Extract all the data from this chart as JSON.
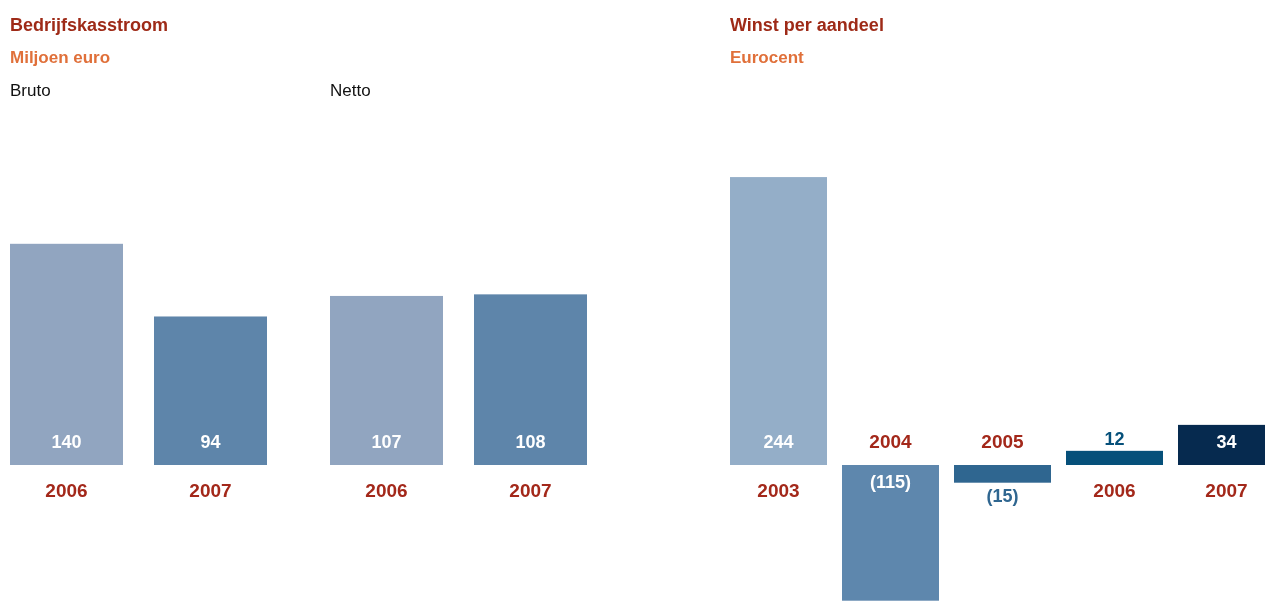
{
  "chart_data": [
    {
      "type": "bar",
      "title": "Bedrijfskasstroom",
      "subtitle": "Miljoen euro",
      "annotations": [
        "Bruto"
      ],
      "categories": [
        "2006",
        "2007"
      ],
      "values": [
        140,
        94
      ],
      "colors": [
        "#91a5c0",
        "#5e85aa"
      ],
      "data_labels": true
    },
    {
      "type": "bar",
      "annotations": [
        "Netto"
      ],
      "categories": [
        "2006",
        "2007"
      ],
      "values": [
        107,
        108
      ],
      "colors": [
        "#91a5c0",
        "#5e85aa"
      ],
      "data_labels": true
    },
    {
      "type": "bar",
      "title": "Winst per aandeel",
      "subtitle": "Eurocent",
      "categories": [
        "2003",
        "2004",
        "2005",
        "2006",
        "2007"
      ],
      "values": [
        244,
        -115,
        -15,
        12,
        34
      ],
      "value_labels": [
        "244",
        "(115)",
        "(15)",
        "12",
        "34"
      ],
      "colors": [
        "#94aec8",
        "#5e87ad",
        "#2f6690",
        "#06507a",
        "#062a4f"
      ]
    }
  ]
}
